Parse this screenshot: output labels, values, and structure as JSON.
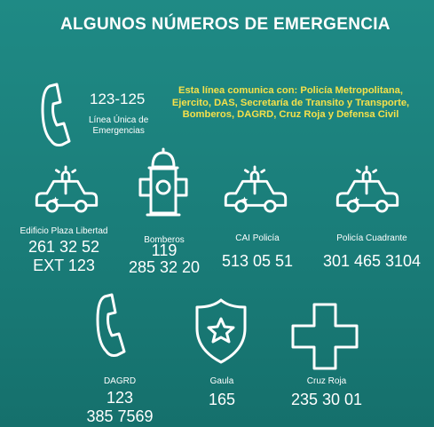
{
  "title": "ALGUNOS NÚMEROS DE EMERGENCIA",
  "linea": {
    "number": "123-125",
    "label_line1": "Línea Única de",
    "label_line2": "Emergencias",
    "note_line1": "Esta línea comunica con: Policía Metropolitana,",
    "note_line2": "Ejercito, DAS, Secretaría de Transito y Transporte,",
    "note_line3": "Bomberos, DAGRD, Cruz Roja y Defensa Civil"
  },
  "contacts": [
    {
      "label": "Edificio Plaza Libertad",
      "number_line1": "261 32 52",
      "number_line2": "EXT 123",
      "icon": "police-car-icon"
    },
    {
      "label": "Bomberos",
      "number_line1": "119",
      "number_line2": "285 32 20",
      "icon": "fire-hydrant-icon"
    },
    {
      "label": "CAI Policía",
      "number_line1": "513 05 51",
      "icon": "police-car-icon"
    },
    {
      "label": "Policía Cuadrante",
      "number_line1": "301 465 3104",
      "icon": "police-car-icon"
    },
    {
      "label": "DAGRD",
      "number_line1": "123",
      "number_line2": "385 7569",
      "icon": "phone-icon"
    },
    {
      "label": "Gaula",
      "number_line1": "165",
      "icon": "police-badge-icon"
    },
    {
      "label": "Cruz Roja",
      "number_line1": "235 30 01",
      "icon": "red-cross-icon"
    }
  ],
  "colors": {
    "background": "#1f8a85",
    "note_text": "#f5e04a",
    "icon_stroke": "#ffffff"
  }
}
